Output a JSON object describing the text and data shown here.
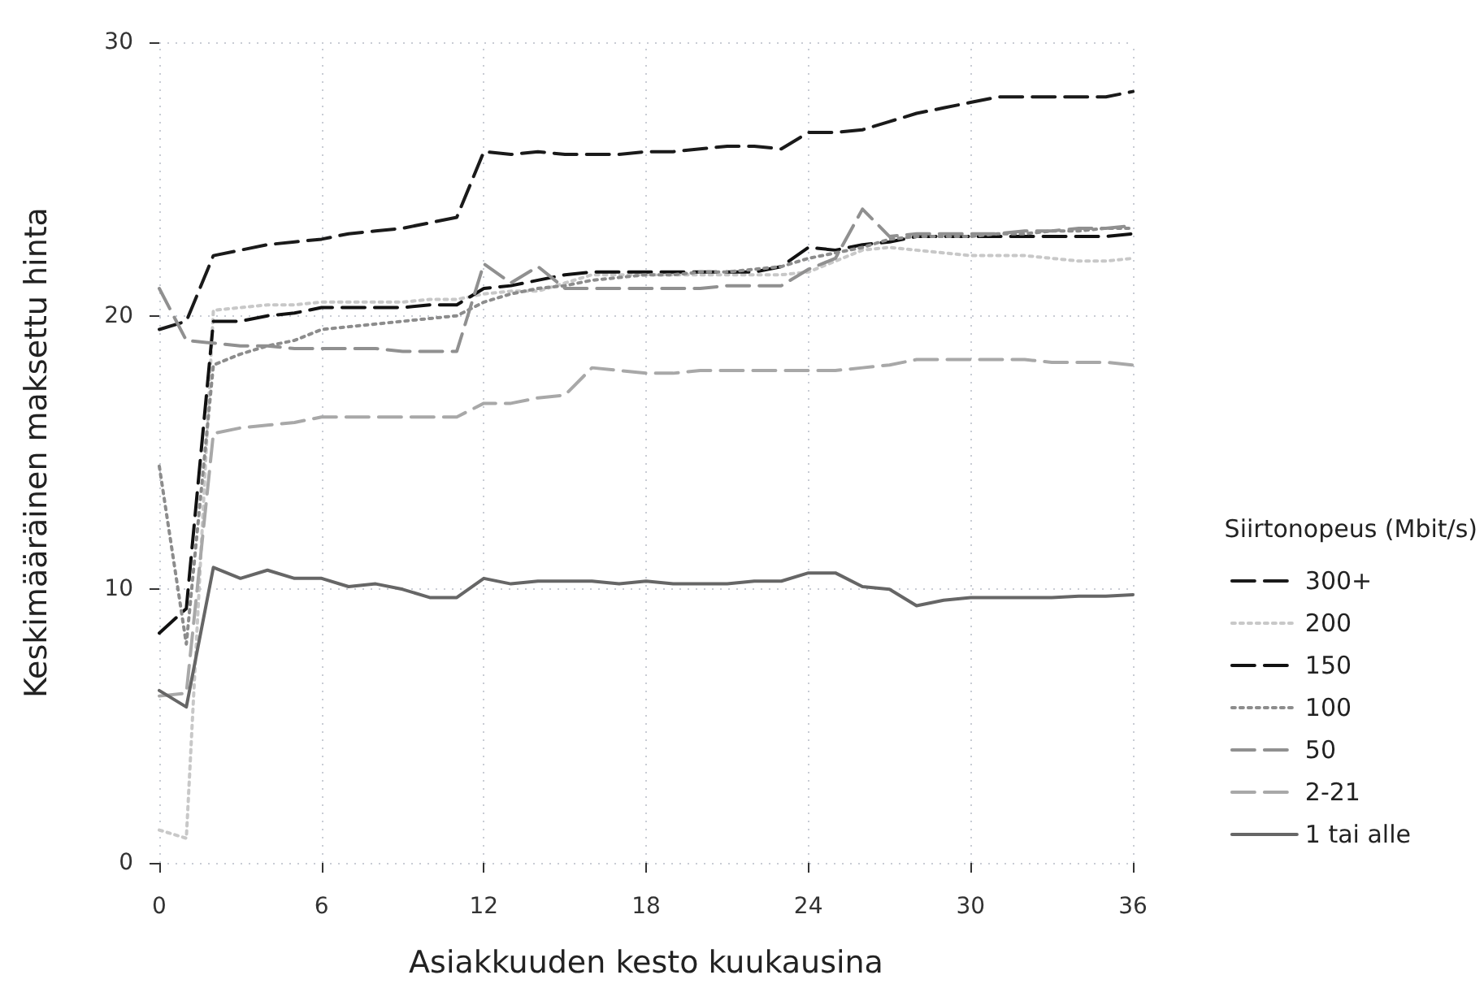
{
  "chart_data": {
    "type": "line",
    "xlabel": "Asiakkuuden kesto kuukausina",
    "ylabel": "Keskimääräinen maksettu hinta",
    "legend_title": "Siirtonopeus (Mbit/s)",
    "x": [
      0,
      1,
      2,
      3,
      4,
      5,
      6,
      7,
      8,
      9,
      10,
      11,
      12,
      13,
      14,
      15,
      16,
      17,
      18,
      19,
      20,
      21,
      22,
      23,
      24,
      25,
      26,
      27,
      28,
      29,
      30,
      31,
      32,
      33,
      34,
      35,
      36
    ],
    "xlim": [
      0,
      36
    ],
    "xticks": [
      0,
      6,
      12,
      18,
      24,
      30,
      36
    ],
    "ylim": [
      0,
      30
    ],
    "yticks": [
      0,
      10,
      20,
      30
    ],
    "grid": true,
    "legend": "right",
    "marker": "none",
    "series": [
      {
        "name": "300+",
        "color": "#1a1a1a",
        "line_style": "dashed",
        "values": [
          19.5,
          19.8,
          22.2,
          22.4,
          22.6,
          22.7,
          22.8,
          23.0,
          23.1,
          23.2,
          23.4,
          23.6,
          26.0,
          25.9,
          26.0,
          25.9,
          25.9,
          25.9,
          26.0,
          26.0,
          26.1,
          26.2,
          26.2,
          26.1,
          26.7,
          26.7,
          26.8,
          27.1,
          27.4,
          27.6,
          27.8,
          28.0,
          28.0,
          28.0,
          28.0,
          28.0,
          28.2
        ]
      },
      {
        "name": "200",
        "color": "#c8c8c8",
        "line_style": "dotted",
        "values": [
          1.2,
          0.9,
          20.2,
          20.3,
          20.4,
          20.4,
          20.5,
          20.5,
          20.5,
          20.5,
          20.6,
          20.6,
          20.8,
          20.9,
          20.9,
          21.2,
          21.5,
          21.5,
          21.5,
          21.5,
          21.5,
          21.5,
          21.5,
          21.5,
          21.6,
          22.0,
          22.4,
          22.5,
          22.4,
          22.3,
          22.2,
          22.2,
          22.2,
          22.1,
          22.0,
          22.0,
          22.1
        ]
      },
      {
        "name": "150",
        "color": "#111111",
        "line_style": "dashed",
        "values": [
          8.4,
          9.3,
          19.8,
          19.8,
          20.0,
          20.1,
          20.3,
          20.3,
          20.3,
          20.3,
          20.4,
          20.4,
          21.0,
          21.1,
          21.3,
          21.5,
          21.6,
          21.6,
          21.6,
          21.6,
          21.6,
          21.6,
          21.6,
          21.8,
          22.5,
          22.4,
          22.6,
          22.7,
          22.9,
          22.9,
          22.9,
          22.9,
          22.9,
          22.9,
          22.9,
          22.9,
          23.0
        ]
      },
      {
        "name": "100",
        "color": "#8c8c8c",
        "line_style": "dotted",
        "values": [
          14.5,
          8.0,
          18.2,
          18.6,
          18.9,
          19.1,
          19.5,
          19.6,
          19.7,
          19.8,
          19.9,
          20.0,
          20.5,
          20.8,
          21.0,
          21.1,
          21.3,
          21.4,
          21.5,
          21.5,
          21.6,
          21.6,
          21.7,
          21.8,
          22.1,
          22.3,
          22.5,
          22.8,
          22.9,
          22.9,
          22.9,
          23.0,
          23.0,
          23.1,
          23.1,
          23.2,
          23.2
        ]
      },
      {
        "name": "50",
        "color": "#909090",
        "line_style": "dashed",
        "values": [
          21.0,
          19.1,
          19.0,
          18.9,
          18.9,
          18.8,
          18.8,
          18.8,
          18.8,
          18.7,
          18.7,
          18.7,
          21.9,
          21.2,
          21.8,
          21.0,
          21.0,
          21.0,
          21.0,
          21.0,
          21.0,
          21.1,
          21.1,
          21.1,
          21.7,
          22.1,
          23.9,
          22.9,
          23.0,
          23.0,
          23.0,
          23.0,
          23.1,
          23.1,
          23.2,
          23.2,
          23.3
        ]
      },
      {
        "name": "2-21",
        "color": "#a8a8a8",
        "line_style": "dashed",
        "values": [
          6.1,
          6.2,
          15.7,
          15.9,
          16.0,
          16.1,
          16.3,
          16.3,
          16.3,
          16.3,
          16.3,
          16.3,
          16.8,
          16.8,
          17.0,
          17.1,
          18.1,
          18.0,
          17.9,
          17.9,
          18.0,
          18.0,
          18.0,
          18.0,
          18.0,
          18.0,
          18.1,
          18.2,
          18.4,
          18.4,
          18.4,
          18.4,
          18.4,
          18.3,
          18.3,
          18.3,
          18.2
        ]
      },
      {
        "name": "1 tai alle",
        "color": "#666666",
        "line_style": "solid",
        "values": [
          6.3,
          5.7,
          10.8,
          10.4,
          10.7,
          10.4,
          10.4,
          10.1,
          10.2,
          10.0,
          9.7,
          9.7,
          10.4,
          10.2,
          10.3,
          10.3,
          10.3,
          10.2,
          10.3,
          10.2,
          10.2,
          10.2,
          10.3,
          10.3,
          10.6,
          10.6,
          10.1,
          10.0,
          9.4,
          9.6,
          9.7,
          9.7,
          9.7,
          9.7,
          9.75,
          9.75,
          9.8
        ]
      }
    ]
  }
}
